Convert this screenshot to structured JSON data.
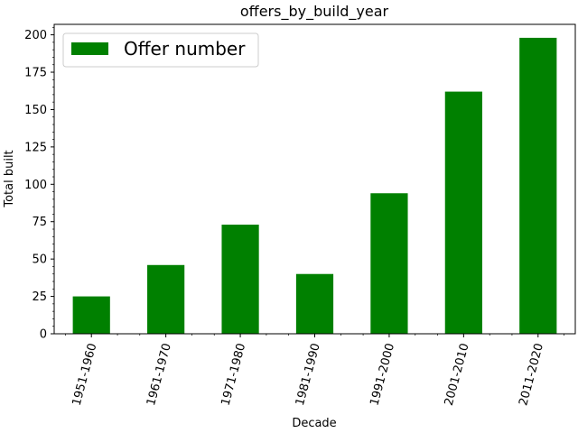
{
  "chart_data": {
    "type": "bar",
    "title": "offers_by_build_year",
    "xlabel": "Decade",
    "ylabel": "Total built",
    "categories": [
      "1951-1960",
      "1961-1970",
      "1971-1980",
      "1981-1990",
      "1991-2000",
      "2001-2010",
      "2011-2020"
    ],
    "series": [
      {
        "name": "Offer number",
        "values": [
          25,
          46,
          73,
          40,
          94,
          162,
          198
        ],
        "color": "#008000"
      }
    ],
    "ylim": [
      0,
      207
    ],
    "yticks": [
      "0",
      "25",
      "50",
      "75",
      "100",
      "125",
      "150",
      "175",
      "200"
    ],
    "x_tick_rotation": "75 degrees",
    "grid": false,
    "legend_position": "upper-left"
  }
}
